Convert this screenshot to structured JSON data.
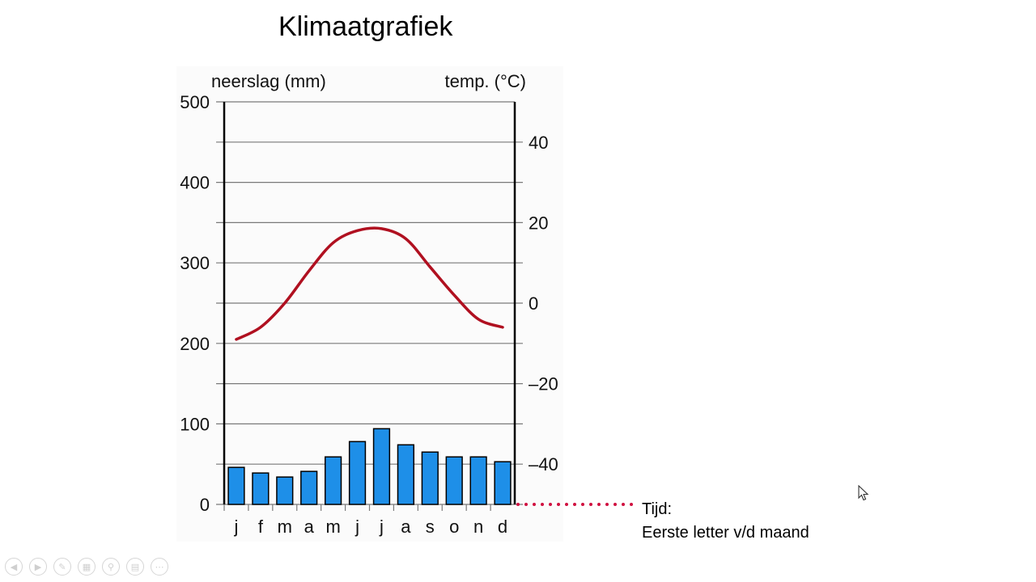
{
  "title": "Klimaatgrafiek",
  "chart_data": {
    "type": "bar",
    "categories": [
      "j",
      "f",
      "m",
      "a",
      "m",
      "j",
      "j",
      "a",
      "s",
      "o",
      "n",
      "d"
    ],
    "ylabel": "neerslag (mm)",
    "y2label": "temp. (°C)",
    "ylim": [
      0,
      500
    ],
    "y2lim": [
      -50,
      50
    ],
    "yticks": [
      "500",
      "400",
      "300",
      "200",
      "100",
      "0"
    ],
    "y2ticks": [
      "40",
      "20",
      "0",
      "–20",
      "–40"
    ],
    "grid": true,
    "series": [
      {
        "name": "neerslag",
        "type": "bar",
        "axis": "left",
        "color": "#1e8fe8",
        "values": [
          46,
          39,
          34,
          41,
          59,
          78,
          94,
          74,
          65,
          59,
          59,
          53
        ]
      },
      {
        "name": "temp.",
        "type": "line",
        "axis": "right",
        "color": "#b01020",
        "values": [
          -9,
          -6,
          0,
          8,
          15,
          18,
          18.5,
          16,
          9,
          2,
          -4,
          -6
        ]
      }
    ]
  },
  "annotation": {
    "line1": "Tijd:",
    "line2": "Eerste letter v/d maand",
    "color": "#d01040"
  },
  "toolbar": {
    "icons": [
      "previous-icon",
      "next-icon",
      "pen-icon",
      "slides-icon",
      "zoom-icon",
      "subtitles-icon",
      "more-icon"
    ]
  }
}
